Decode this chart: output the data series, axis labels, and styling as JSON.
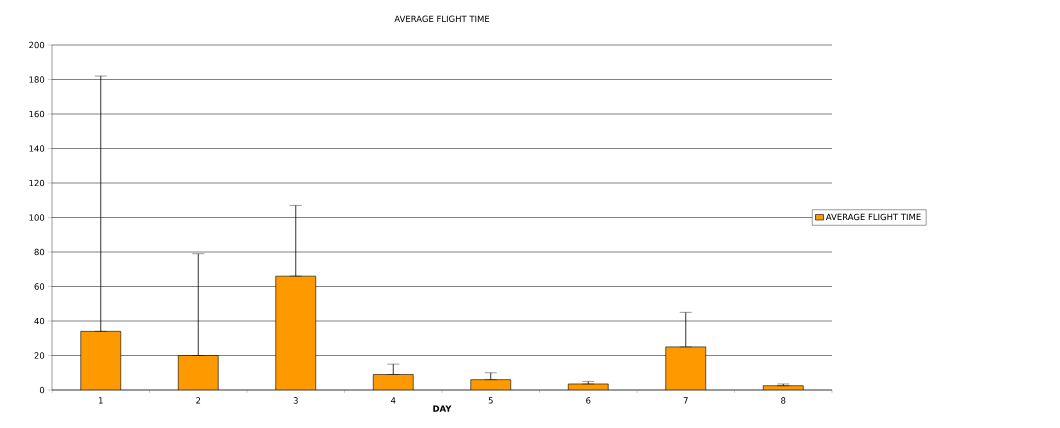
{
  "chart_data": {
    "type": "bar",
    "title": "AVERAGE FLIGHT TIME",
    "xlabel": "DAY",
    "categories": [
      "1",
      "2",
      "3",
      "4",
      "5",
      "6",
      "7",
      "8"
    ],
    "series": [
      {
        "name": "AVERAGE FLIGHT TIME",
        "color": "#ff9900",
        "values": [
          34,
          20,
          66,
          9,
          6,
          3.5,
          25,
          2.5
        ],
        "errors": [
          [
            34,
            182
          ],
          [
            20,
            79
          ],
          [
            66,
            107
          ],
          [
            9,
            15
          ],
          [
            6,
            10
          ],
          [
            3.5,
            5
          ],
          [
            25,
            45
          ],
          [
            2.5,
            3.5
          ]
        ]
      }
    ],
    "ylim": [
      0,
      200
    ],
    "yticks": [
      0,
      20,
      40,
      60,
      80,
      100,
      120,
      140,
      160,
      180,
      200
    ],
    "grid": "y",
    "legend": "right"
  }
}
